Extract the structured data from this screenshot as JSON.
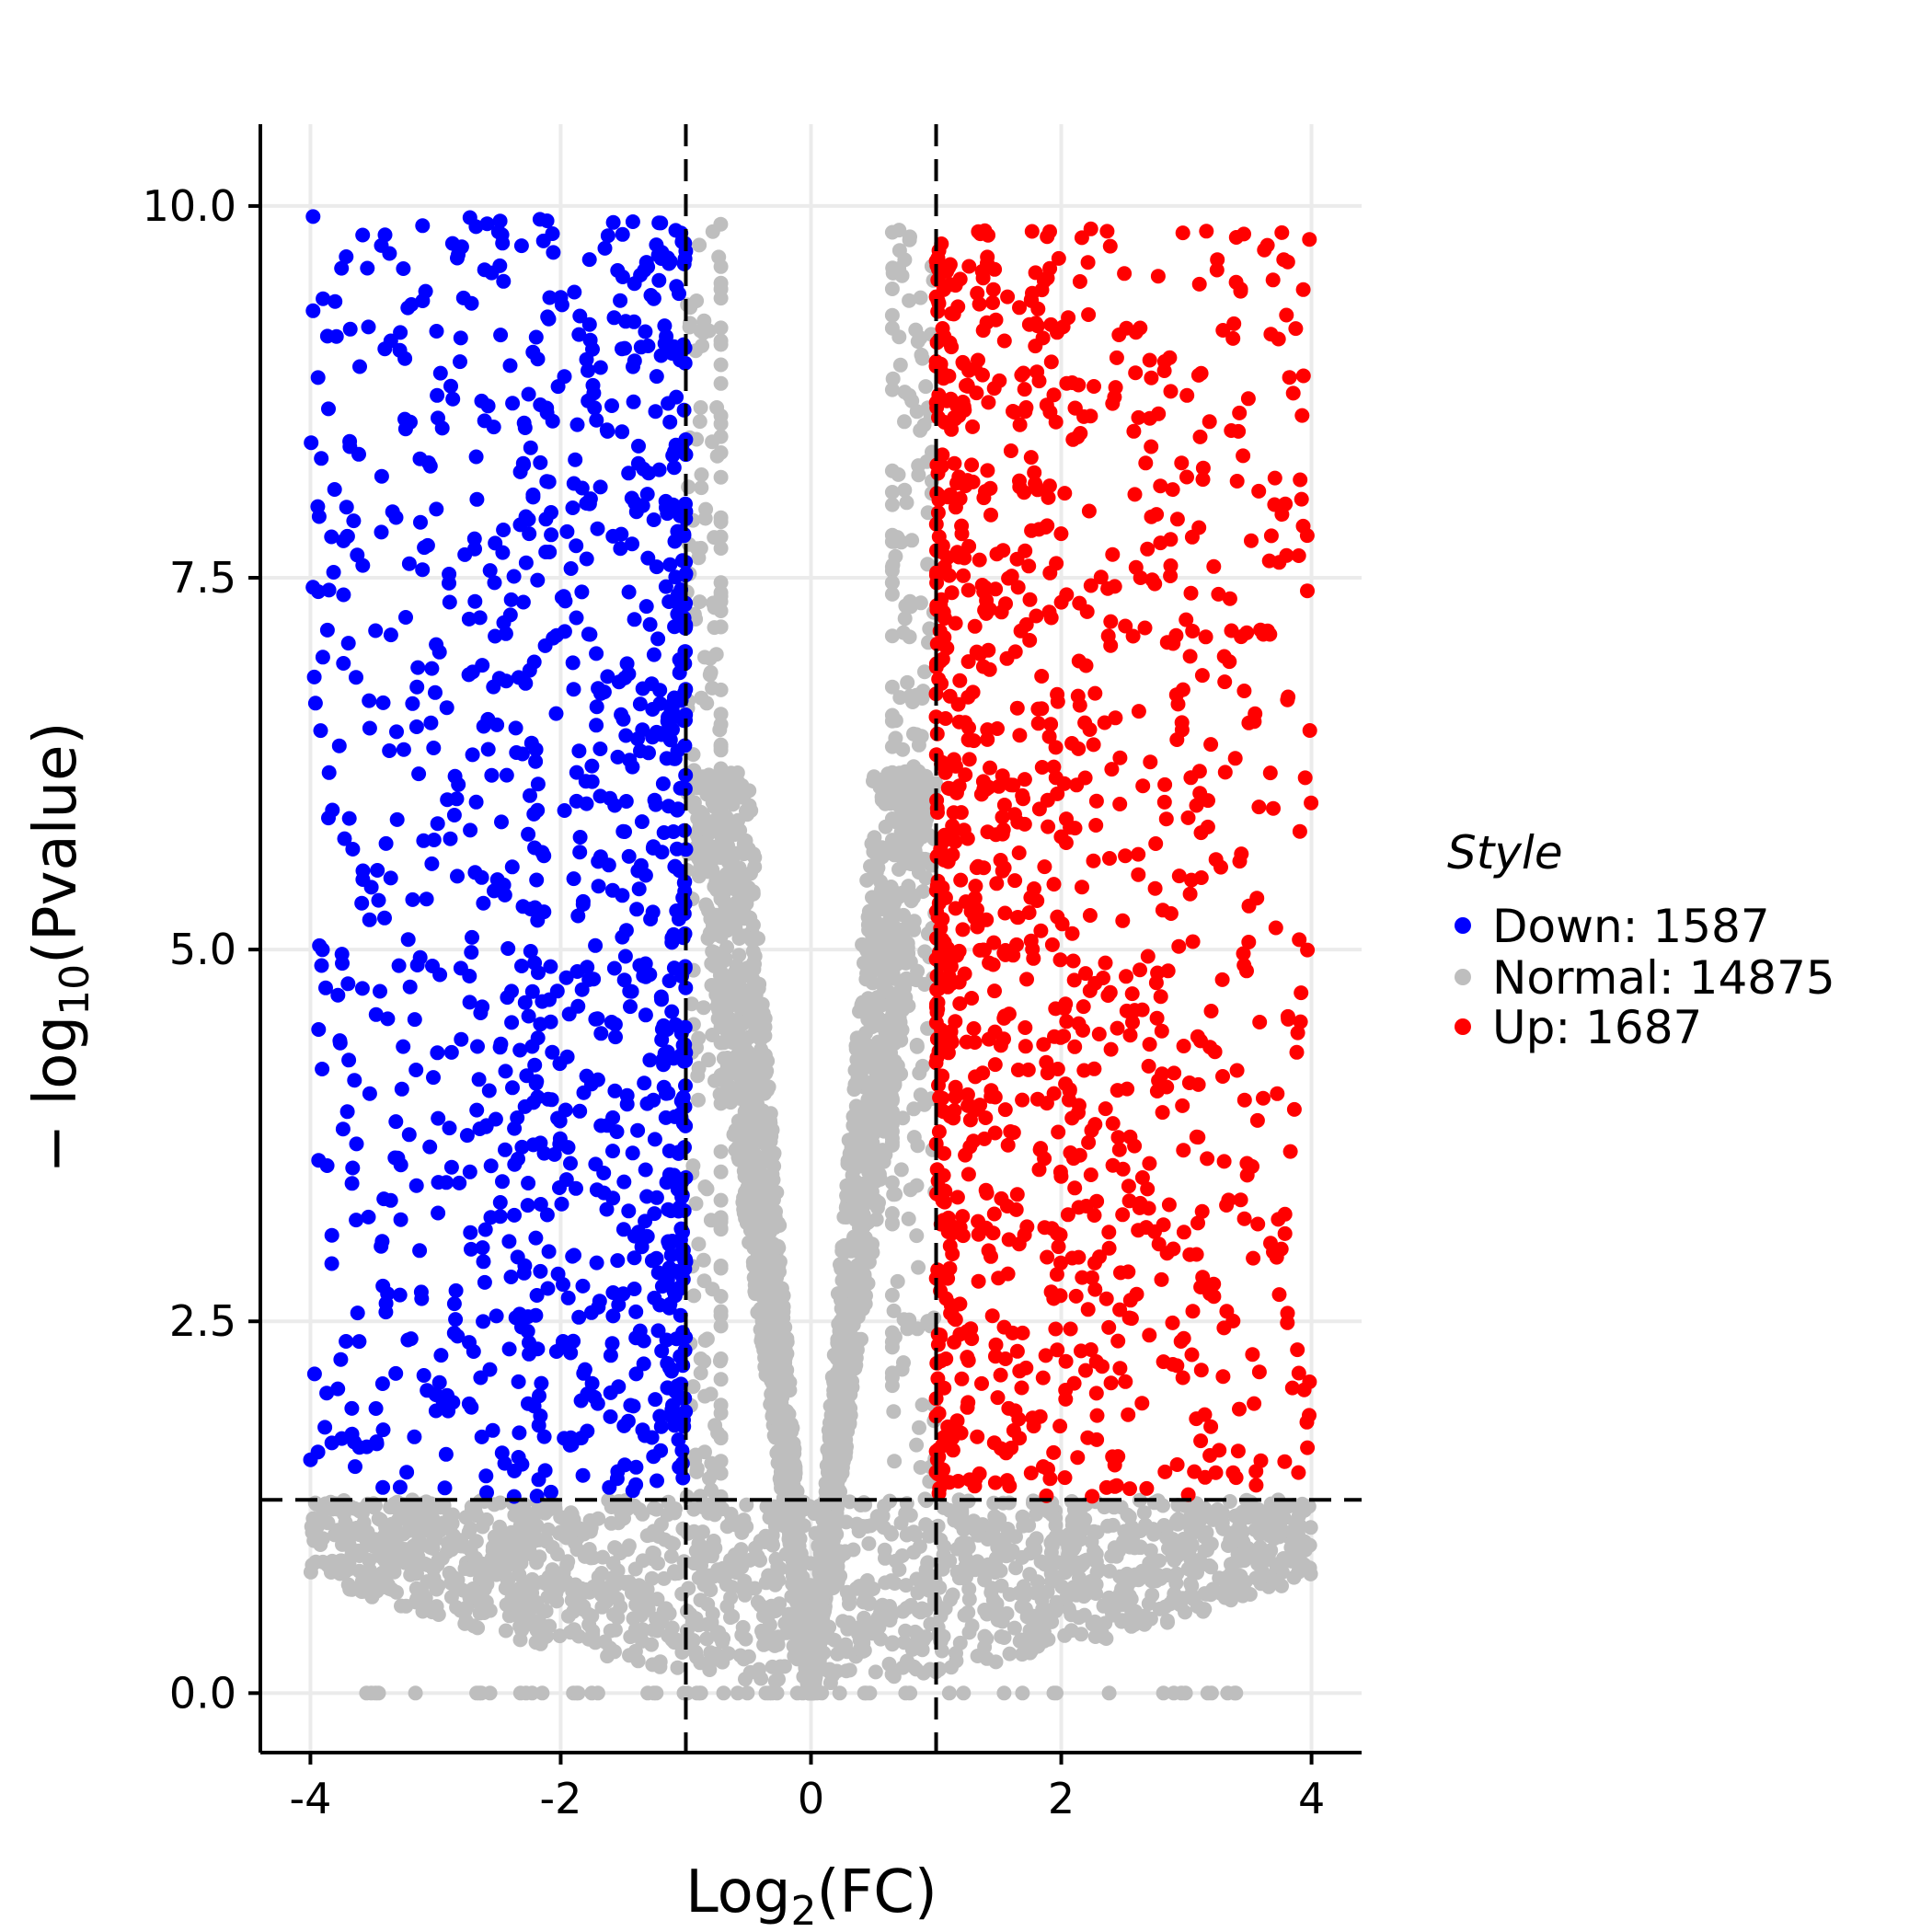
{
  "chart_data": {
    "type": "scatter",
    "xlabel": {
      "base": "Log",
      "sub": "2",
      "rest": "(FC)"
    },
    "ylabel": {
      "prefix": "− log",
      "sub": "10",
      "rest": "(Pvalue)"
    },
    "xlim": [
      -4.4,
      4.4
    ],
    "ylim": [
      -0.4,
      10.55
    ],
    "x_ticks": [
      -4,
      -2,
      0,
      2,
      4
    ],
    "x_tick_labels": [
      "-4",
      "-2",
      "0",
      "2",
      "4"
    ],
    "y_ticks": [
      0,
      2.5,
      5,
      7.5,
      10
    ],
    "y_tick_labels": [
      "0.0",
      "2.5",
      "5.0",
      "7.5",
      "10.0"
    ],
    "grid": true,
    "thresholds": {
      "log2fc": [
        -1,
        1
      ],
      "neg_log10_p": 1.3
    },
    "legend": {
      "title": "Style",
      "placement": "right",
      "entries": [
        {
          "label": "Down: 1587",
          "color": "#0000FF"
        },
        {
          "label": "Normal: 14875",
          "color": "#BEBEBE"
        },
        {
          "label": "Up: 1687",
          "color": "#FF0000"
        }
      ]
    },
    "series": [
      {
        "name": "Down",
        "count": 1587,
        "color": "#0000FF",
        "x_range": [
          -4,
          -1
        ],
        "y_range": [
          1.3,
          10
        ]
      },
      {
        "name": "Normal",
        "count": 14875,
        "color": "#BEBEBE",
        "x_range": [
          -4,
          4
        ],
        "y_range": [
          0,
          10
        ]
      },
      {
        "name": "Up",
        "count": 1687,
        "color": "#FF0000",
        "x_range": [
          1,
          4
        ],
        "y_range": [
          1.3,
          10
        ]
      }
    ]
  }
}
